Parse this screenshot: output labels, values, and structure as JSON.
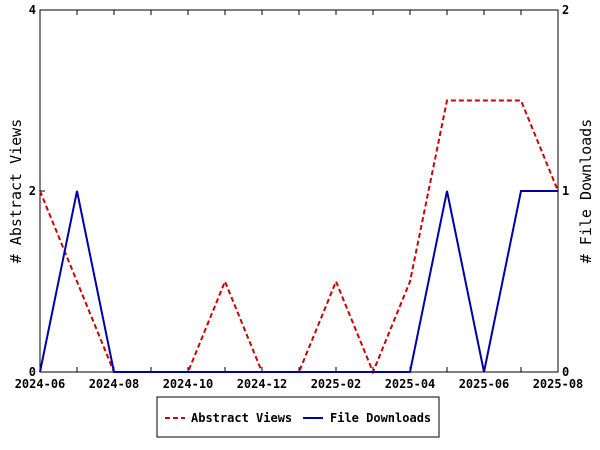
{
  "chart_data": {
    "type": "line",
    "x_months": [
      "2024-06",
      "2024-07",
      "2024-08",
      "2024-09",
      "2024-10",
      "2024-11",
      "2024-12",
      "2025-01",
      "2025-02",
      "2025-03",
      "2025-04",
      "2025-05",
      "2025-06",
      "2025-07",
      "2025-08"
    ],
    "x_tick_labels": [
      "2024-06",
      "2024-08",
      "2024-10",
      "2024-12",
      "2025-02",
      "2025-04",
      "2025-06",
      "2025-08"
    ],
    "ylabel_left": "# Abstract Views",
    "ylabel_right": "# File Downloads",
    "ylim_left": [
      0,
      4
    ],
    "ylim_right": [
      0,
      2
    ],
    "y_ticks_left": [
      "0",
      "2",
      "4"
    ],
    "y_ticks_right": [
      "0",
      "1",
      "2"
    ],
    "grid": false,
    "legend_position": "bottom-center",
    "series": [
      {
        "name": "Abstract Views",
        "axis": "left",
        "color": "#cc0000",
        "dash": "dashed",
        "values": [
          2,
          1,
          0,
          0,
          0,
          1,
          0,
          0,
          1,
          0,
          1,
          3,
          3,
          3,
          2
        ]
      },
      {
        "name": "File Downloads",
        "axis": "right",
        "color": "#0000aa",
        "dash": "solid",
        "values": [
          0,
          1,
          0,
          0,
          0,
          0,
          0,
          0,
          0,
          0,
          0,
          1,
          0,
          1,
          1
        ]
      }
    ]
  }
}
